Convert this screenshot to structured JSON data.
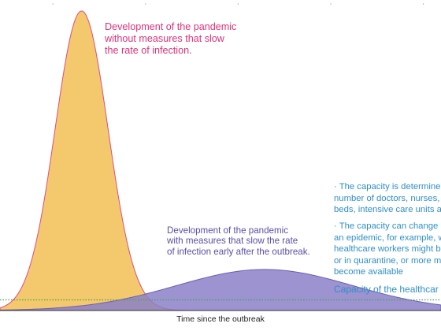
{
  "chart_data": {
    "type": "area",
    "title": "",
    "xlabel": "Time since the outbreak",
    "ylabel": "",
    "grid": false,
    "series": [
      {
        "name": "",
        "color": "#f4c86c",
        "peak_x": 0.185,
        "peak_y": 0.985,
        "spread": 0.06
      },
      {
        "name": "",
        "color": "#8b80c8",
        "peak_x": 0.6,
        "peak_y": 0.135,
        "spread": 0.2
      }
    ],
    "capacity_level": 0.035,
    "annotations": {
      "without_measures": [
        "Development of the pandemic",
        "without measures that slow",
        "the rate of infection."
      ],
      "with_measures": [
        "Development of the pandemic",
        "with measures that slow the rate",
        "of infection early after the outbreak."
      ],
      "capacity_note_1": [
        "· The capacity is determine",
        "number of doctors, nurses,",
        "beds, intensive care units a"
      ],
      "capacity_note_2": [
        "· The capacity can change",
        "an epidemic, for example, w",
        "healthcare workers might b",
        "or in quarantine, or more m",
        "become available"
      ],
      "capacity_label": "Capacity of the healthcar"
    }
  },
  "colors": {
    "without_fill": "#f4c86c",
    "without_stroke": "#e04b82",
    "with_fill": "#8b80c8",
    "with_stroke": "#6b5fb6",
    "capacity_line": "#3aa84a",
    "axis": "#333333"
  }
}
